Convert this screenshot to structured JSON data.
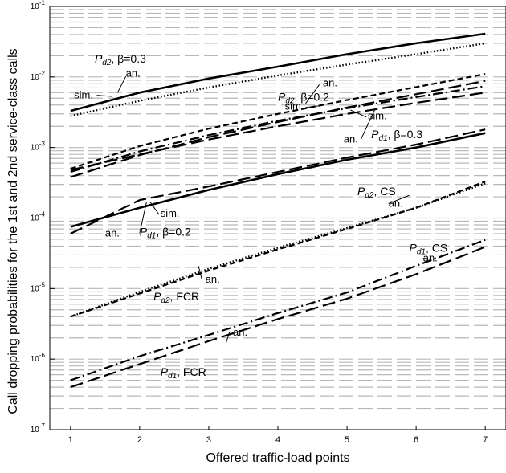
{
  "chart_data": {
    "type": "line",
    "xlabel": "Offered traffic-load points",
    "ylabel": "Call dropping probabilities for the 1st and 2nd service-class calls",
    "x": [
      1,
      2,
      3,
      4,
      5,
      6,
      7
    ],
    "xlim": [
      0.7,
      7.3
    ],
    "ylim": [
      1e-07,
      0.1
    ],
    "yscale": "log",
    "grid": "horizontal dashed at minor and major decades",
    "xticks": [
      "1",
      "2",
      "3",
      "4",
      "5",
      "6",
      "7"
    ],
    "yticks": [
      {
        "base": "10",
        "exp": "-1",
        "value": 0.1
      },
      {
        "base": "10",
        "exp": "-2",
        "value": 0.01
      },
      {
        "base": "10",
        "exp": "-3",
        "value": 0.001
      },
      {
        "base": "10",
        "exp": "-4",
        "value": 0.0001
      },
      {
        "base": "10",
        "exp": "-5",
        "value": 1e-05
      },
      {
        "base": "10",
        "exp": "-6",
        "value": 1e-06
      },
      {
        "base": "10",
        "exp": "-7",
        "value": 1e-07
      }
    ],
    "series": [
      {
        "style": "solid",
        "width": 2.6,
        "values": [
          0.0033,
          0.006,
          0.0095,
          0.014,
          0.021,
          0.03,
          0.041
        ]
      },
      {
        "style": "dotted",
        "width": 2.4,
        "values": [
          0.0028,
          0.0046,
          0.0071,
          0.0105,
          0.015,
          0.021,
          0.03
        ]
      },
      {
        "style": "shortdash",
        "width": 2.2,
        "values": [
          0.0005,
          0.00105,
          0.00185,
          0.003,
          0.0047,
          0.0072,
          0.011
        ]
      },
      {
        "style": "longdash",
        "width": 2.2,
        "values": [
          0.00038,
          0.00078,
          0.0014,
          0.0023,
          0.0037,
          0.0057,
          0.0088
        ]
      },
      {
        "style": "dashdot",
        "width": 2.2,
        "values": [
          0.00045,
          0.00088,
          0.0015,
          0.0024,
          0.0036,
          0.0052,
          0.0074
        ]
      },
      {
        "style": "longdash",
        "width": 2.2,
        "values": [
          0.00048,
          0.0008,
          0.0013,
          0.002,
          0.003,
          0.0043,
          0.006
        ]
      },
      {
        "style": "solid",
        "width": 2.6,
        "values": [
          7.5e-05,
          0.00014,
          0.00025,
          0.00042,
          0.00067,
          0.001,
          0.0016
        ]
      },
      {
        "style": "longdash",
        "width": 2.2,
        "values": [
          6e-05,
          0.00018,
          0.00028,
          0.00045,
          0.00072,
          0.0011,
          0.0018
        ]
      },
      {
        "style": "dotted",
        "width": 2.4,
        "values": [
          4e-06,
          9e-06,
          1.9e-05,
          3.8e-05,
          7.2e-05,
          0.00014,
          0.00031
        ]
      },
      {
        "style": "shortdash",
        "width": 2.2,
        "values": [
          4e-06,
          8.5e-06,
          1.8e-05,
          3.6e-05,
          7e-05,
          0.00014,
          0.00033
        ]
      },
      {
        "style": "dashdot",
        "width": 2.2,
        "values": [
          5e-07,
          1.1e-06,
          2.2e-06,
          4.5e-06,
          8.8e-06,
          2.1e-05,
          4.9e-05
        ]
      },
      {
        "style": "longdash",
        "width": 2.2,
        "values": [
          4e-07,
          8.5e-07,
          1.8e-06,
          3.7e-06,
          7.2e-06,
          1.6e-05,
          3.9e-05
        ]
      }
    ],
    "annotations": [
      {
        "main": "P",
        "sub": "d2",
        "rest": ", β=0.3",
        "x": 1.35,
        "y": 0.0183
      },
      {
        "main": "P",
        "sub": "d2",
        "rest": ", β=0.2",
        "x": 4.0,
        "y": 0.00525
      },
      {
        "main": "P",
        "sub": "d1",
        "rest": ", β=0.3",
        "x": 5.35,
        "y": 0.00155
      },
      {
        "main": "P",
        "sub": "d2",
        "rest": ", CS",
        "x": 5.15,
        "y": 0.00024
      },
      {
        "main": "P",
        "sub": "d1",
        "rest": ", β=0.2",
        "x": 2.0,
        "y": 6.4e-05
      },
      {
        "main": "P",
        "sub": "d1",
        "rest": ", CS",
        "x": 5.9,
        "y": 3.8e-05
      },
      {
        "main": "P",
        "sub": "d2",
        "rest": ", FCR",
        "x": 2.2,
        "y": 7.8e-06
      },
      {
        "main": "P",
        "sub": "d1",
        "rest": ", FCR",
        "x": 2.3,
        "y": 6.6e-07
      }
    ],
    "markers": [
      {
        "text": "an.",
        "x": 1.8,
        "y": 0.0112,
        "tip": [
          1.68,
          0.006
        ],
        "base": [
          1.8,
          0.0102
        ]
      },
      {
        "text": "sim.",
        "x": 1.05,
        "y": 0.0055,
        "tip": [
          1.6,
          0.0053
        ],
        "base": [
          1.38,
          0.0055
        ]
      },
      {
        "text": "an.",
        "x": 4.65,
        "y": 0.0082,
        "tip": [
          4.4,
          0.0042
        ],
        "base": [
          4.6,
          0.0078
        ]
      },
      {
        "text": "sim.",
        "x": 4.1,
        "y": 0.0038,
        "tip": [
          4.6,
          0.0039
        ],
        "base": [
          4.4,
          0.0037
        ]
      },
      {
        "text": "sim.",
        "x": 5.3,
        "y": 0.0028,
        "tip": [
          5.05,
          0.0034
        ],
        "base": [
          5.28,
          0.0027
        ]
      },
      {
        "text": "an.",
        "x": 4.95,
        "y": 0.0013,
        "tip": [
          5.4,
          0.0034
        ],
        "base": [
          5.2,
          0.0013
        ]
      },
      {
        "text": "an.",
        "x": 5.6,
        "y": 0.00016,
        "tip": [
          5.9,
          0.00021
        ],
        "base": [
          5.6,
          0.00016
        ]
      },
      {
        "text": "sim.",
        "x": 2.3,
        "y": 0.000115,
        "tip": [
          2.15,
          0.00017
        ],
        "base": [
          2.28,
          0.000112
        ]
      },
      {
        "text": "an.",
        "x": 1.5,
        "y": 6.1e-05,
        "tip": [
          2.1,
          0.00017
        ],
        "base": [
          2.0,
          6.1e-05
        ]
      },
      {
        "text": "an.",
        "x": 6.1,
        "y": 2.7e-05,
        "tip": [
          6.2,
          2.6e-05
        ],
        "base": [
          6.1,
          2.7e-05
        ]
      },
      {
        "text": "an.",
        "x": 2.95,
        "y": 1.35e-05,
        "tip": [
          2.85,
          2.1e-05
        ],
        "base": [
          2.9,
          1.35e-05
        ]
      },
      {
        "text": "an.",
        "x": 3.35,
        "y": 2.4e-06,
        "tip": [
          3.25,
          1.7e-06
        ],
        "base": [
          3.3,
          2.4e-06
        ]
      }
    ]
  }
}
